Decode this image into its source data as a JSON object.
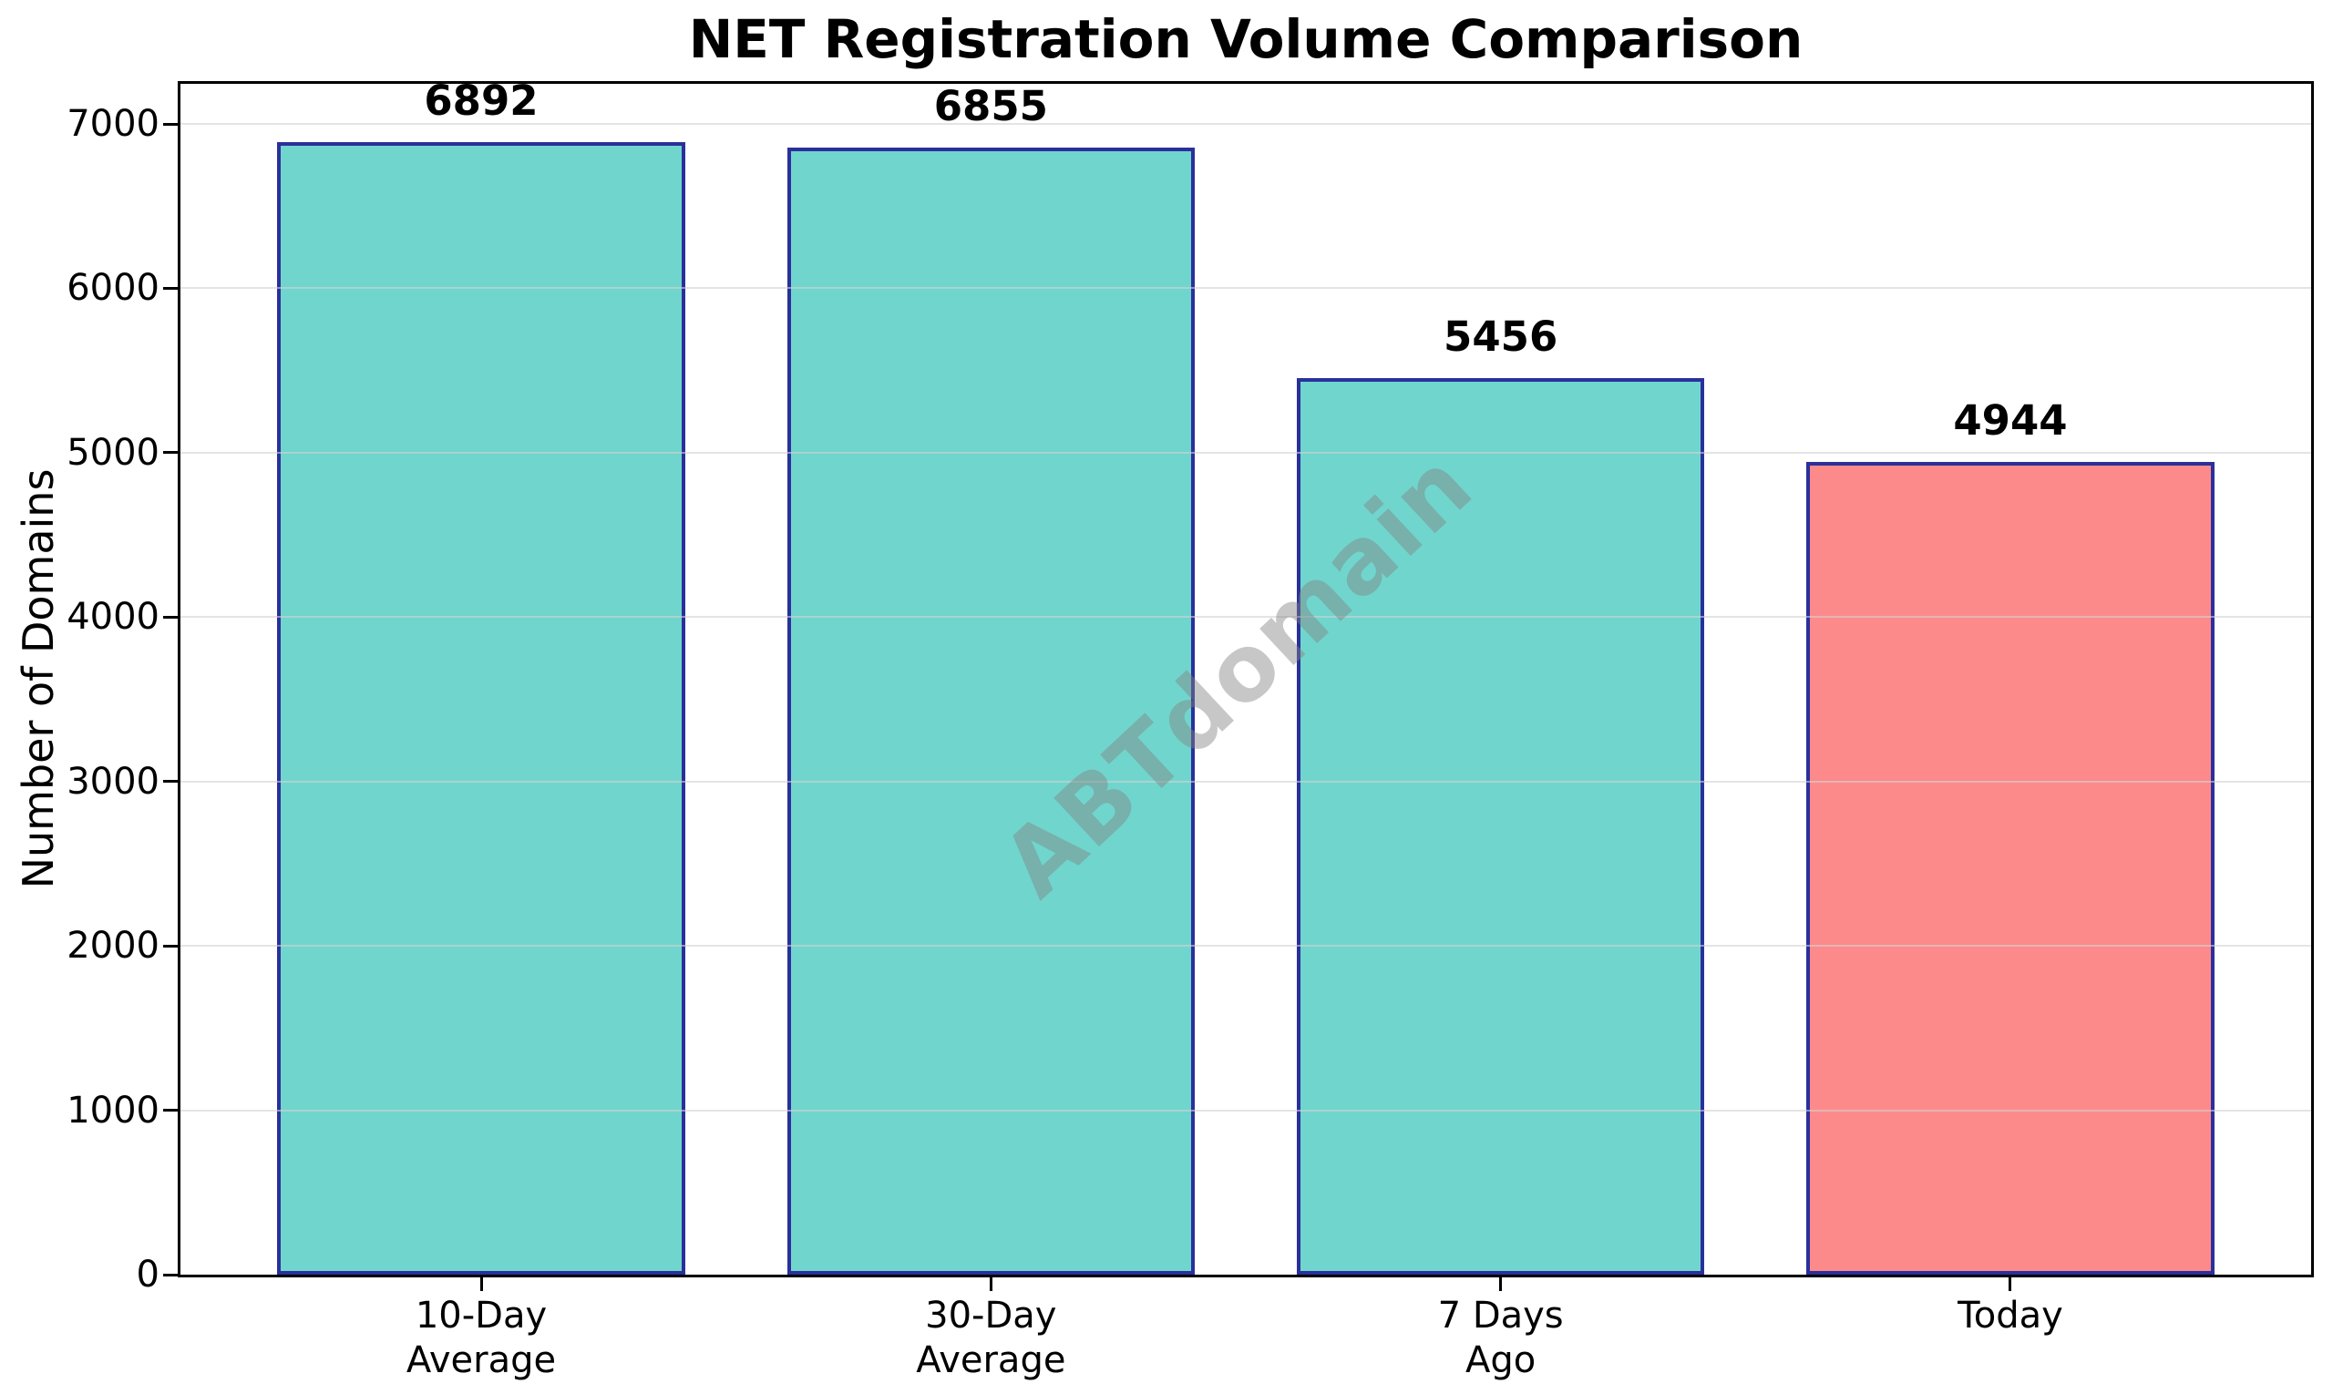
{
  "chart_data": {
    "type": "bar",
    "title": "NET Registration Volume Comparison",
    "ylabel": "Number of Domains",
    "xlabel": "",
    "categories": [
      "10-Day\nAverage",
      "30-Day\nAverage",
      "7 Days\nAgo",
      "Today"
    ],
    "values": [
      6892,
      6855,
      5456,
      4944
    ],
    "value_labels": [
      "6892",
      "6855",
      "5456",
      "4944"
    ],
    "bar_colors": [
      "#70D5CD",
      "#70D5CD",
      "#70D5CD",
      "#FC8A8A"
    ],
    "bar_edge_color": "#2A309B",
    "yticks": [
      0,
      1000,
      2000,
      3000,
      4000,
      5000,
      6000,
      7000
    ],
    "ylim": [
      0,
      7244
    ],
    "grid": true,
    "grid_axis": "y",
    "legend": "none",
    "background": "#FFFFFF",
    "watermark": "ABTdomain"
  }
}
